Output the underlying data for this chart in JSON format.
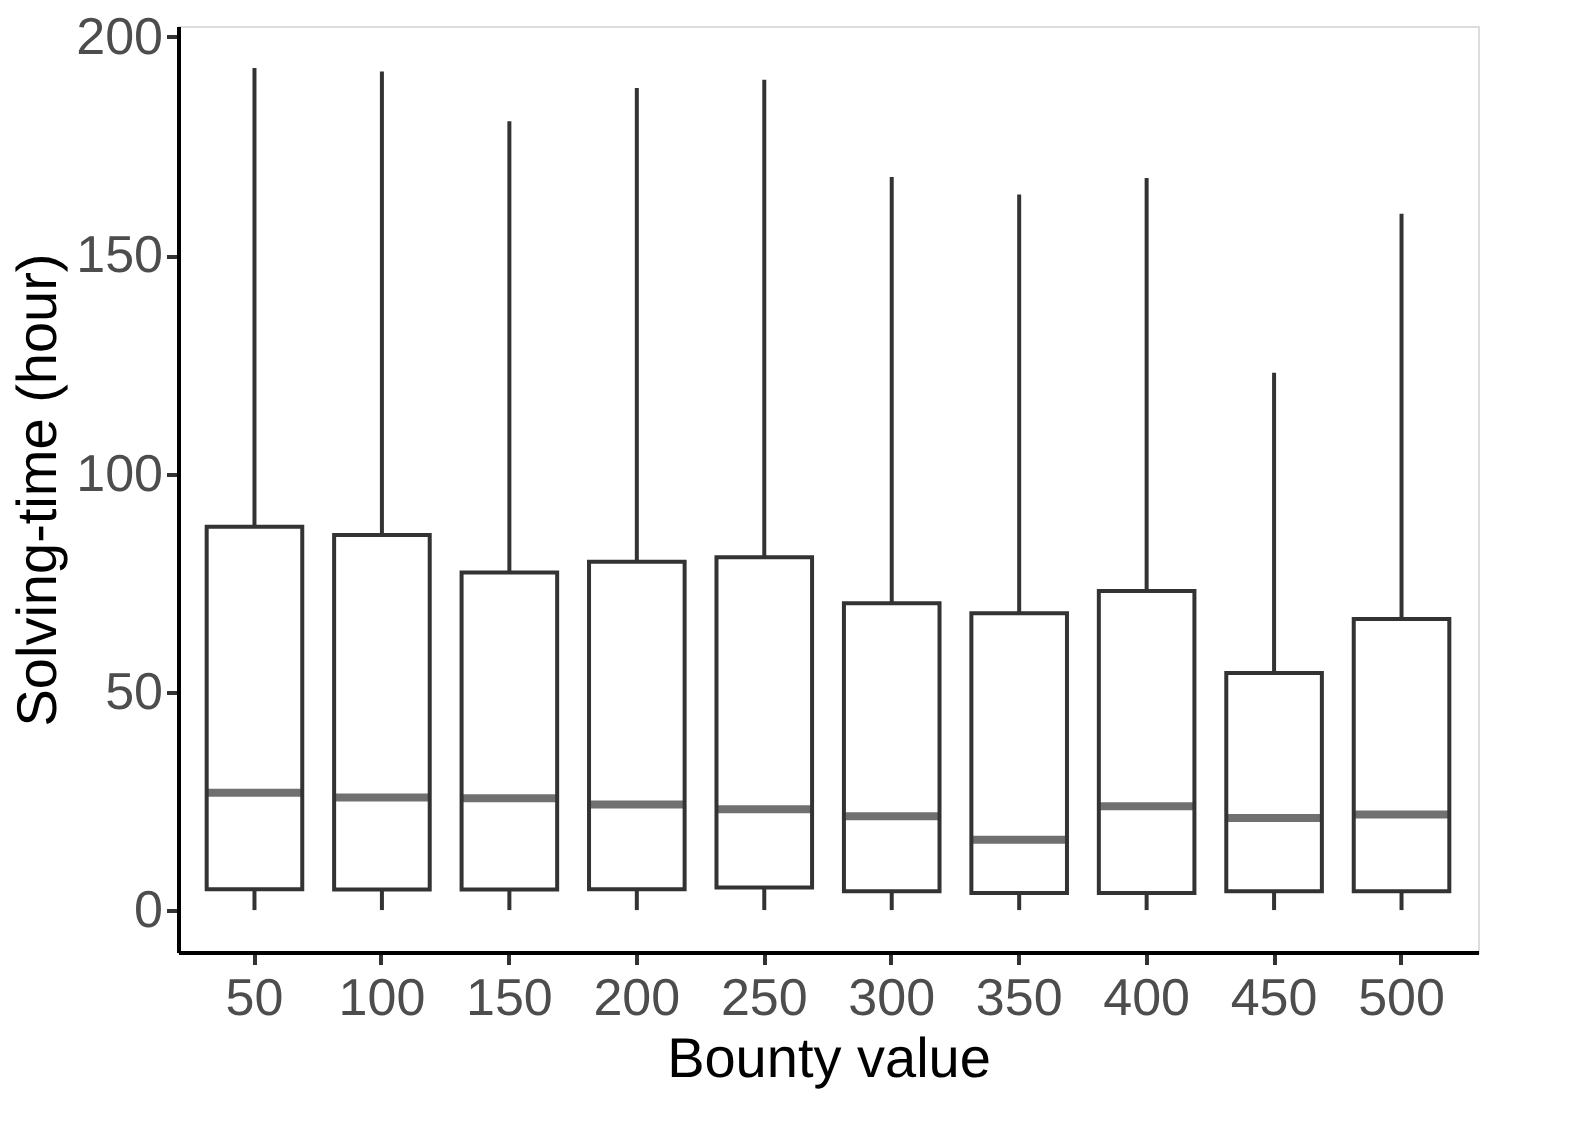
{
  "chart_data": {
    "type": "box",
    "xlabel": "Bounty value",
    "ylabel": "Solving-time (hour)",
    "categories": [
      "50",
      "100",
      "150",
      "200",
      "250",
      "300",
      "350",
      "400",
      "450",
      "500"
    ],
    "boxes": [
      {
        "low": 0,
        "q1": 4.8,
        "median": 26.9,
        "q3": 87.8,
        "high": 192.9
      },
      {
        "low": 0,
        "q1": 4.7,
        "median": 25.8,
        "q3": 85.9,
        "high": 192.1
      },
      {
        "low": 0,
        "q1": 4.7,
        "median": 25.6,
        "q3": 77.3,
        "high": 180.7
      },
      {
        "low": 0,
        "q1": 4.8,
        "median": 24.2,
        "q3": 79.8,
        "high": 188.3
      },
      {
        "low": 0,
        "q1": 5.2,
        "median": 23.1,
        "q3": 80.8,
        "high": 190.2
      },
      {
        "low": 0,
        "q1": 4.3,
        "median": 21.5,
        "q3": 70.3,
        "high": 167.9
      },
      {
        "low": 0,
        "q1": 3.9,
        "median": 16.1,
        "q3": 68.0,
        "high": 163.9
      },
      {
        "low": 0,
        "q1": 3.9,
        "median": 23.8,
        "q3": 73.1,
        "high": 167.7
      },
      {
        "low": 0,
        "q1": 4.3,
        "median": 21.1,
        "q3": 54.3,
        "high": 123.1
      },
      {
        "low": 0,
        "q1": 4.3,
        "median": 21.9,
        "q3": 66.7,
        "high": 159.5
      }
    ],
    "ylim": [
      -9.6,
      202.5
    ],
    "yticks": [
      0,
      50,
      100,
      150,
      200
    ]
  }
}
